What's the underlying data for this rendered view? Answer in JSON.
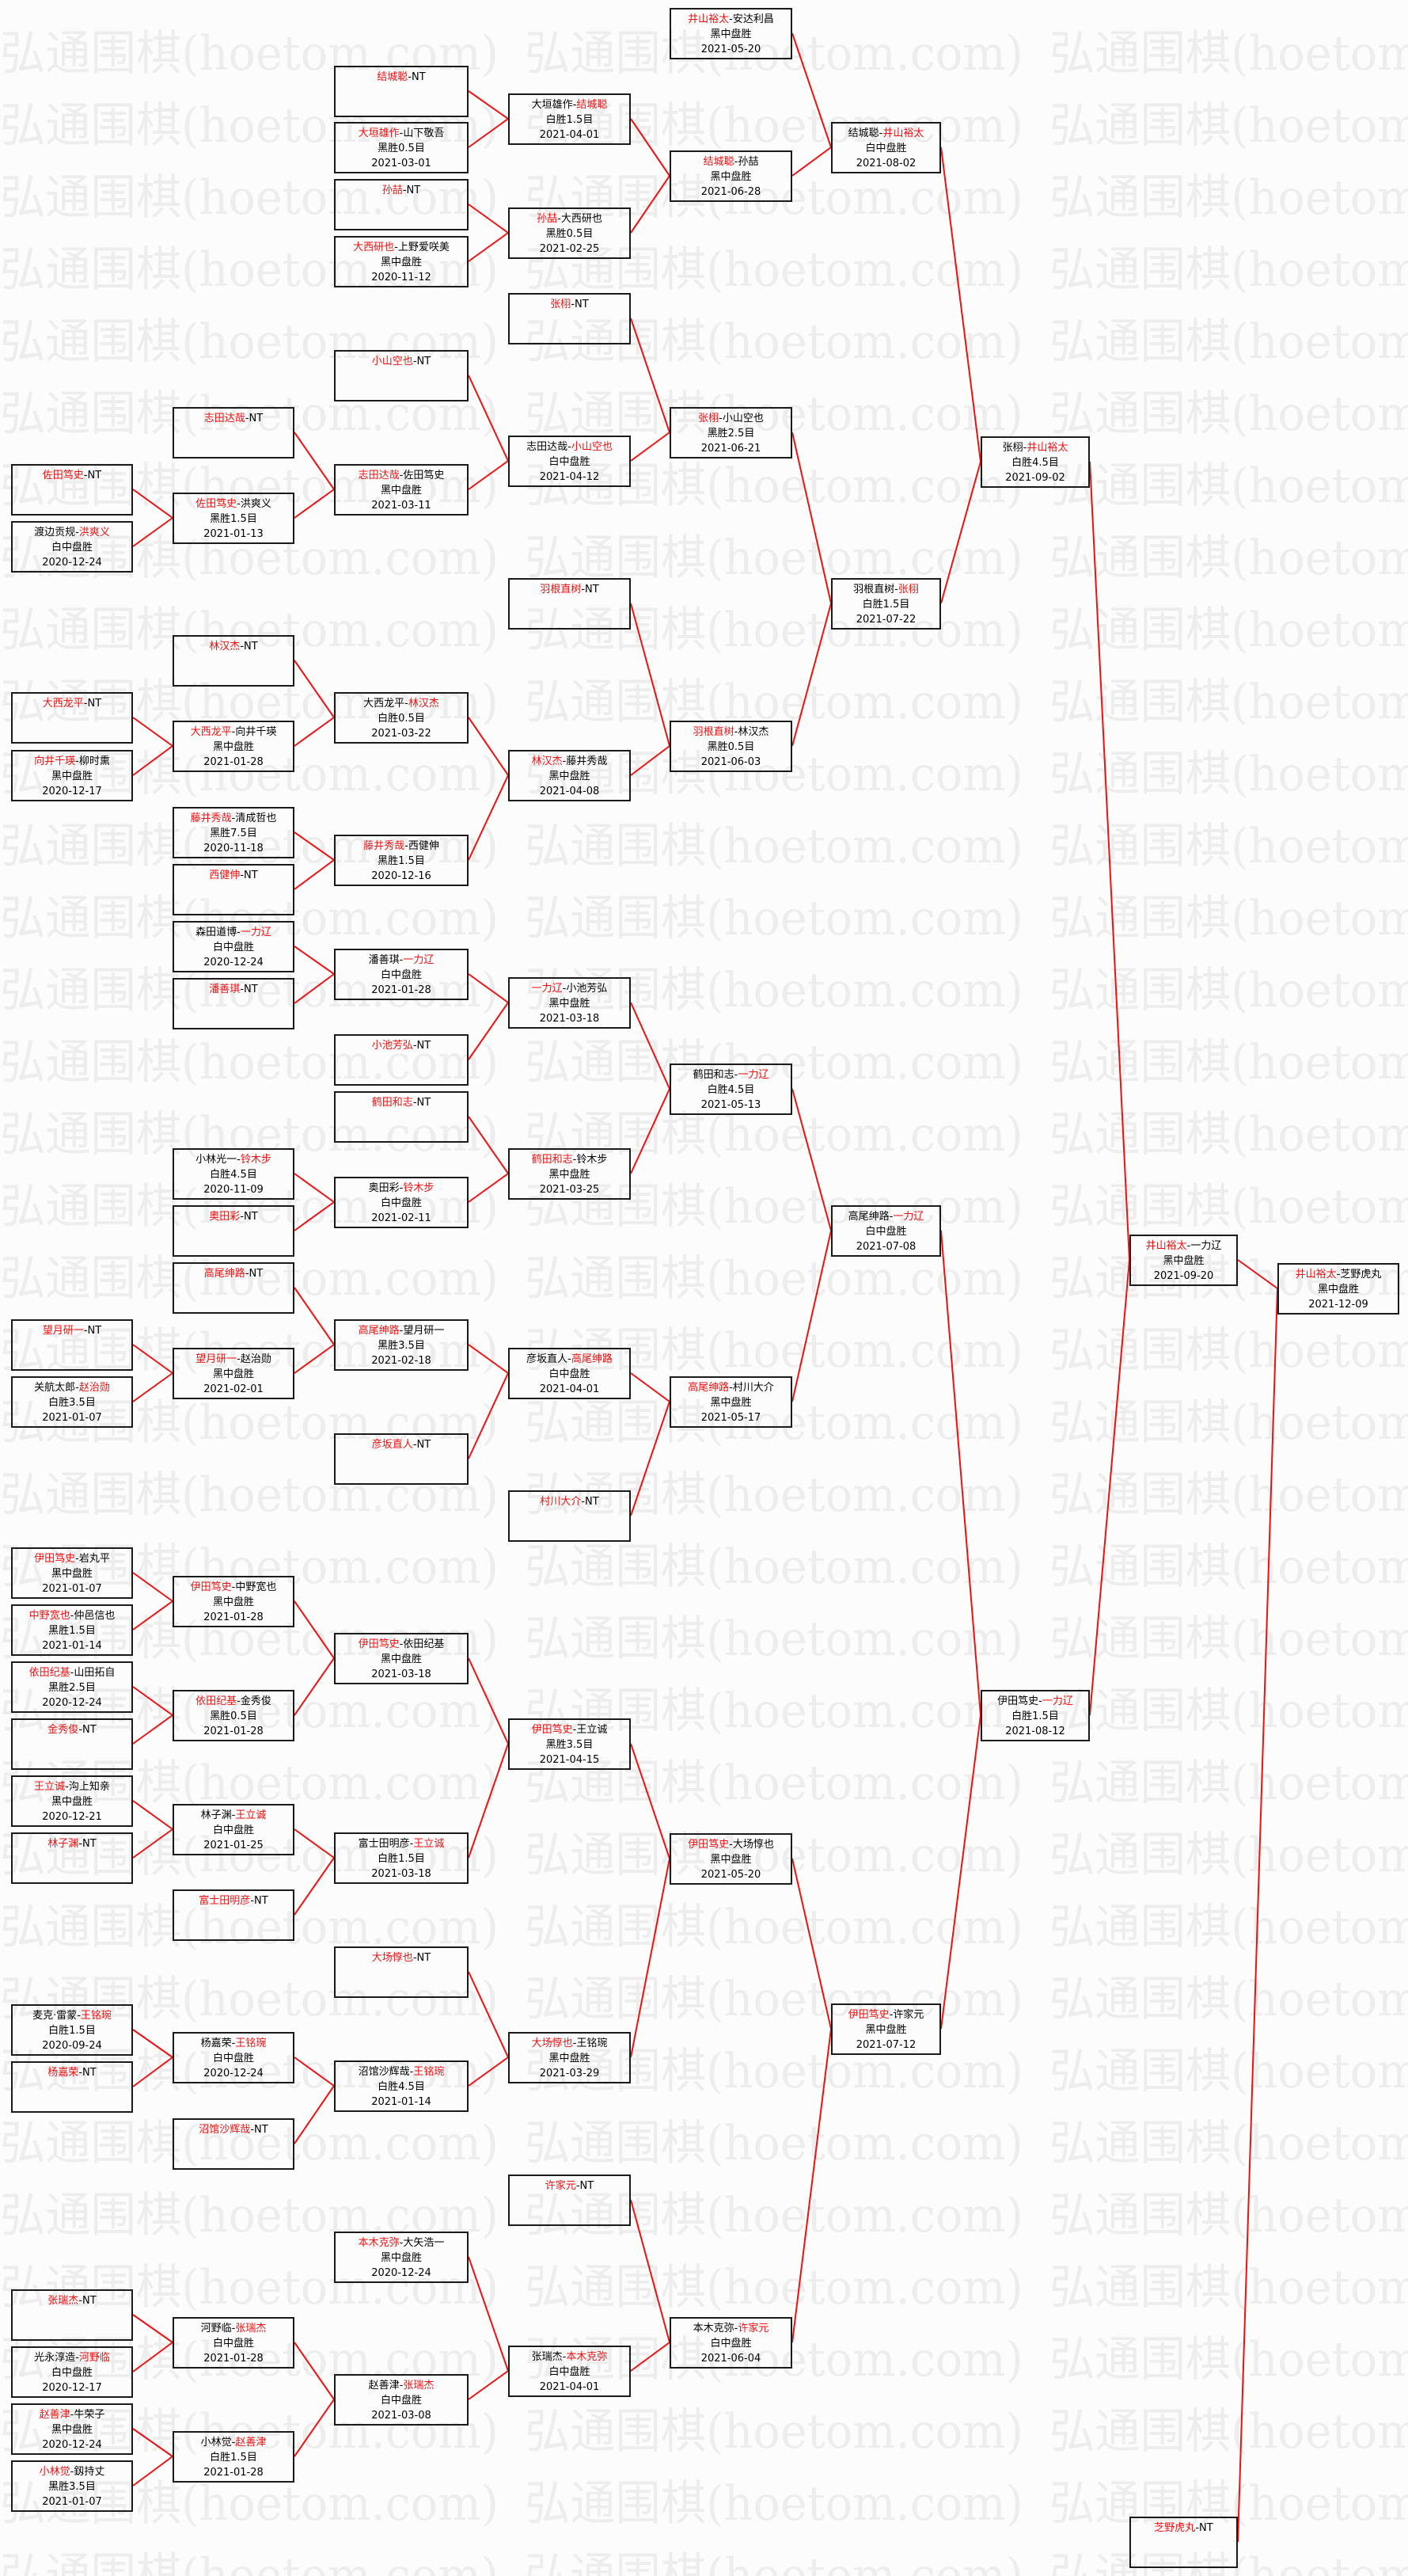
{
  "watermark": "弘通围棋(hoetom.com)",
  "colors": {
    "winner": "#ee1111",
    "connector": "#ee1111",
    "border": "#1a1a1a",
    "text": "#000000"
  },
  "boxes": [
    {
      "p1": "佐田笃史",
      "p2": "NT",
      "win": 1
    },
    {
      "p1": "渡边贡规",
      "p2": "洪爽义",
      "win": 2,
      "result": "白中盘胜",
      "date": "2020-12-24"
    },
    {
      "p1": "大西龙平",
      "p2": "NT",
      "win": 1
    },
    {
      "p1": "向井千瑛",
      "p2": "柳时熏",
      "win": 1,
      "result": "黑中盘胜",
      "date": "2020-12-17"
    },
    {
      "p1": "望月研一",
      "p2": "NT",
      "win": 1
    },
    {
      "p1": "关航太郎",
      "p2": "赵治勋",
      "win": 2,
      "result": "白胜3.5目",
      "date": "2021-01-07"
    },
    {
      "p1": "伊田笃史",
      "p2": "岩丸平",
      "win": 1,
      "result": "黑中盘胜",
      "date": "2021-01-07"
    },
    {
      "p1": "中野宽也",
      "p2": "仲邑信也",
      "win": 1,
      "result": "黑胜1.5目",
      "date": "2021-01-14"
    },
    {
      "p1": "依田纪基",
      "p2": "山田拓自",
      "win": 1,
      "result": "黑胜2.5目",
      "date": "2020-12-24"
    },
    {
      "p1": "金秀俊",
      "p2": "NT",
      "win": 1
    },
    {
      "p1": "王立诚",
      "p2": "沟上知亲",
      "win": 1,
      "result": "黑中盘胜",
      "date": "2020-12-21"
    },
    {
      "p1": "林子渊",
      "p2": "NT",
      "win": 1
    },
    {
      "p1": "麦克·雷蒙",
      "p2": "王铭琬",
      "win": 2,
      "result": "白胜1.5目",
      "date": "2020-09-24"
    },
    {
      "p1": "杨嘉荣",
      "p2": "NT",
      "win": 1
    },
    {
      "p1": "张瑞杰",
      "p2": "NT",
      "win": 1
    },
    {
      "p1": "光永淳造",
      "p2": "河野临",
      "win": 2,
      "result": "白中盘胜",
      "date": "2020-12-17"
    },
    {
      "p1": "赵善津",
      "p2": "牛荣子",
      "win": 1,
      "result": "黑中盘胜",
      "date": "2020-12-24"
    },
    {
      "p1": "小林觉",
      "p2": "釼持丈",
      "win": 1,
      "result": "黑胜3.5目",
      "date": "2021-01-07"
    },
    {
      "p1": "志田达哉",
      "p2": "NT",
      "win": 1
    },
    {
      "p1": "佐田笃史",
      "p2": "洪爽义",
      "win": 1,
      "result": "黑胜1.5目",
      "date": "2021-01-13"
    },
    {
      "p1": "林汉杰",
      "p2": "NT",
      "win": 1
    },
    {
      "p1": "大西龙平",
      "p2": "向井千瑛",
      "win": 1,
      "result": "黑中盘胜",
      "date": "2021-01-28"
    },
    {
      "p1": "藤井秀哉",
      "p2": "清成哲也",
      "win": 1,
      "result": "黑胜7.5目",
      "date": "2020-11-18"
    },
    {
      "p1": "西健伸",
      "p2": "NT",
      "win": 1
    },
    {
      "p1": "森田道博",
      "p2": "一力辽",
      "win": 2,
      "result": "白中盘胜",
      "date": "2020-12-24"
    },
    {
      "p1": "潘善琪",
      "p2": "NT",
      "win": 1
    },
    {
      "p1": "小林光一",
      "p2": "铃木步",
      "win": 2,
      "result": "白胜4.5目",
      "date": "2020-11-09"
    },
    {
      "p1": "奥田彩",
      "p2": "NT",
      "win": 1
    },
    {
      "p1": "高尾绅路",
      "p2": "NT",
      "win": 1
    },
    {
      "p1": "望月研一",
      "p2": "赵治勋",
      "win": 1,
      "result": "黑中盘胜",
      "date": "2021-02-01"
    },
    {
      "p1": "伊田笃史",
      "p2": "中野宽也",
      "win": 1,
      "result": "黑中盘胜",
      "date": "2021-01-28"
    },
    {
      "p1": "依田纪基",
      "p2": "金秀俊",
      "win": 1,
      "result": "黑胜0.5目",
      "date": "2021-01-28"
    },
    {
      "p1": "林子渊",
      "p2": "王立诚",
      "win": 2,
      "result": "白中盘胜",
      "date": "2021-01-25"
    },
    {
      "p1": "富士田明彦",
      "p2": "NT",
      "win": 1
    },
    {
      "p1": "杨嘉荣",
      "p2": "王铭琬",
      "win": 2,
      "result": "白中盘胜",
      "date": "2020-12-24"
    },
    {
      "p1": "沼馆沙辉哉",
      "p2": "NT",
      "win": 1
    },
    {
      "p1": "河野临",
      "p2": "张瑞杰",
      "win": 2,
      "result": "白中盘胜",
      "date": "2021-01-28"
    },
    {
      "p1": "小林觉",
      "p2": "赵善津",
      "win": 2,
      "result": "白胜1.5目",
      "date": "2021-01-28"
    },
    {
      "p1": "结城聪",
      "p2": "NT",
      "win": 1
    },
    {
      "p1": "大垣雄作",
      "p2": "山下敬吾",
      "win": 1,
      "result": "黑胜0.5目",
      "date": "2021-03-01"
    },
    {
      "p1": "孙喆",
      "p2": "NT",
      "win": 1
    },
    {
      "p1": "大西研也",
      "p2": "上野爱咲美",
      "win": 1,
      "result": "黑中盘胜",
      "date": "2020-11-12"
    },
    {
      "p1": "小山空也",
      "p2": "NT",
      "win": 1
    },
    {
      "p1": "志田达哉",
      "p2": "佐田笃史",
      "win": 1,
      "result": "黑中盘胜",
      "date": "2021-03-11"
    },
    {
      "p1": "大西龙平",
      "p2": "林汉杰",
      "win": 2,
      "result": "白胜0.5目",
      "date": "2021-03-22"
    },
    {
      "p1": "藤井秀哉",
      "p2": "西健伸",
      "win": 1,
      "result": "黑胜1.5目",
      "date": "2020-12-16"
    },
    {
      "p1": "潘善琪",
      "p2": "一力辽",
      "win": 2,
      "result": "白中盘胜",
      "date": "2021-01-28"
    },
    {
      "p1": "小池芳弘",
      "p2": "NT",
      "win": 1
    },
    {
      "p1": "鹤田和志",
      "p2": "NT",
      "win": 1
    },
    {
      "p1": "奥田彩",
      "p2": "铃木步",
      "win": 2,
      "result": "白中盘胜",
      "date": "2021-02-11"
    },
    {
      "p1": "高尾绅路",
      "p2": "望月研一",
      "win": 1,
      "result": "黑胜3.5目",
      "date": "2021-02-18"
    },
    {
      "p1": "彦坂直人",
      "p2": "NT",
      "win": 1
    },
    {
      "p1": "伊田笃史",
      "p2": "依田纪基",
      "win": 1,
      "result": "黑中盘胜",
      "date": "2021-03-18"
    },
    {
      "p1": "富士田明彦",
      "p2": "王立诚",
      "win": 2,
      "result": "白胜1.5目",
      "date": "2021-03-18"
    },
    {
      "p1": "大场惇也",
      "p2": "NT",
      "win": 1
    },
    {
      "p1": "沼馆沙辉哉",
      "p2": "王铭琬",
      "win": 2,
      "result": "白胜4.5目",
      "date": "2021-01-14"
    },
    {
      "p1": "本木克弥",
      "p2": "大矢浩一",
      "win": 1,
      "result": "黑中盘胜",
      "date": "2020-12-24"
    },
    {
      "p1": "赵善津",
      "p2": "张瑞杰",
      "win": 2,
      "result": "白中盘胜",
      "date": "2021-03-08"
    },
    {
      "p1": "大垣雄作",
      "p2": "结城聪",
      "win": 2,
      "result": "白胜1.5目",
      "date": "2021-04-01"
    },
    {
      "p1": "孙喆",
      "p2": "大西研也",
      "win": 1,
      "result": "黑胜0.5目",
      "date": "2021-02-25"
    },
    {
      "p1": "张栩",
      "p2": "NT",
      "win": 1
    },
    {
      "p1": "志田达哉",
      "p2": "小山空也",
      "win": 2,
      "result": "白中盘胜",
      "date": "2021-04-12"
    },
    {
      "p1": "羽根直树",
      "p2": "NT",
      "win": 1
    },
    {
      "p1": "林汉杰",
      "p2": "藤井秀哉",
      "win": 1,
      "result": "黑中盘胜",
      "date": "2021-04-08"
    },
    {
      "p1": "一力辽",
      "p2": "小池芳弘",
      "win": 1,
      "result": "黑中盘胜",
      "date": "2021-03-18"
    },
    {
      "p1": "鹤田和志",
      "p2": "铃木步",
      "win": 1,
      "result": "黑中盘胜",
      "date": "2021-03-25"
    },
    {
      "p1": "彦坂直人",
      "p2": "高尾绅路",
      "win": 2,
      "result": "白中盘胜",
      "date": "2021-04-01"
    },
    {
      "p1": "村川大介",
      "p2": "NT",
      "win": 1
    },
    {
      "p1": "伊田笃史",
      "p2": "王立诚",
      "win": 1,
      "result": "黑胜3.5目",
      "date": "2021-04-15"
    },
    {
      "p1": "大场惇也",
      "p2": "王铭琬",
      "win": 1,
      "result": "黑中盘胜",
      "date": "2021-03-29"
    },
    {
      "p1": "许家元",
      "p2": "NT",
      "win": 1
    },
    {
      "p1": "张瑞杰",
      "p2": "本木克弥",
      "win": 2,
      "result": "白中盘胜",
      "date": "2021-04-01"
    },
    {
      "p1": "井山裕太",
      "p2": "安达利昌",
      "win": 1,
      "result": "黑中盘胜",
      "date": "2021-05-20"
    },
    {
      "p1": "结城聪",
      "p2": "孙喆",
      "win": 1,
      "result": "黑中盘胜",
      "date": "2021-06-28"
    },
    {
      "p1": "张栩",
      "p2": "小山空也",
      "win": 1,
      "result": "黑胜2.5目",
      "date": "2021-06-21"
    },
    {
      "p1": "羽根直树",
      "p2": "林汉杰",
      "win": 1,
      "result": "黑胜0.5目",
      "date": "2021-06-03"
    },
    {
      "p1": "鹤田和志",
      "p2": "一力辽",
      "win": 2,
      "result": "白胜4.5目",
      "date": "2021-05-13"
    },
    {
      "p1": "高尾绅路",
      "p2": "村川大介",
      "win": 1,
      "result": "黑中盘胜",
      "date": "2021-05-17"
    },
    {
      "p1": "伊田笃史",
      "p2": "大场惇也",
      "win": 1,
      "result": "黑中盘胜",
      "date": "2021-05-20"
    },
    {
      "p1": "本木克弥",
      "p2": "许家元",
      "win": 2,
      "result": "白中盘胜",
      "date": "2021-06-04"
    },
    {
      "p1": "结城聪",
      "p2": "井山裕太",
      "win": 2,
      "result": "白中盘胜",
      "date": "2021-08-02"
    },
    {
      "p1": "羽根直树",
      "p2": "张栩",
      "win": 2,
      "result": "白胜1.5目",
      "date": "2021-07-22"
    },
    {
      "p1": "高尾绅路",
      "p2": "一力辽",
      "win": 2,
      "result": "白中盘胜",
      "date": "2021-07-08"
    },
    {
      "p1": "伊田笃史",
      "p2": "许家元",
      "win": 1,
      "result": "黑中盘胜",
      "date": "2021-07-12"
    },
    {
      "p1": "张栩",
      "p2": "井山裕太",
      "win": 2,
      "result": "白胜4.5目",
      "date": "2021-09-02"
    },
    {
      "p1": "伊田笃史",
      "p2": "一力辽",
      "win": 2,
      "result": "白胜1.5目",
      "date": "2021-08-12"
    },
    {
      "p1": "井山裕太",
      "p2": "一力辽",
      "win": 1,
      "result": "黑中盘胜",
      "date": "2021-09-20"
    },
    {
      "p1": "芝野虎丸",
      "p2": "NT",
      "win": 1
    },
    {
      "p1": "井山裕太",
      "p2": "芝野虎丸",
      "win": 1,
      "result": "黑中盘胜",
      "date": "2021-12-09"
    }
  ]
}
